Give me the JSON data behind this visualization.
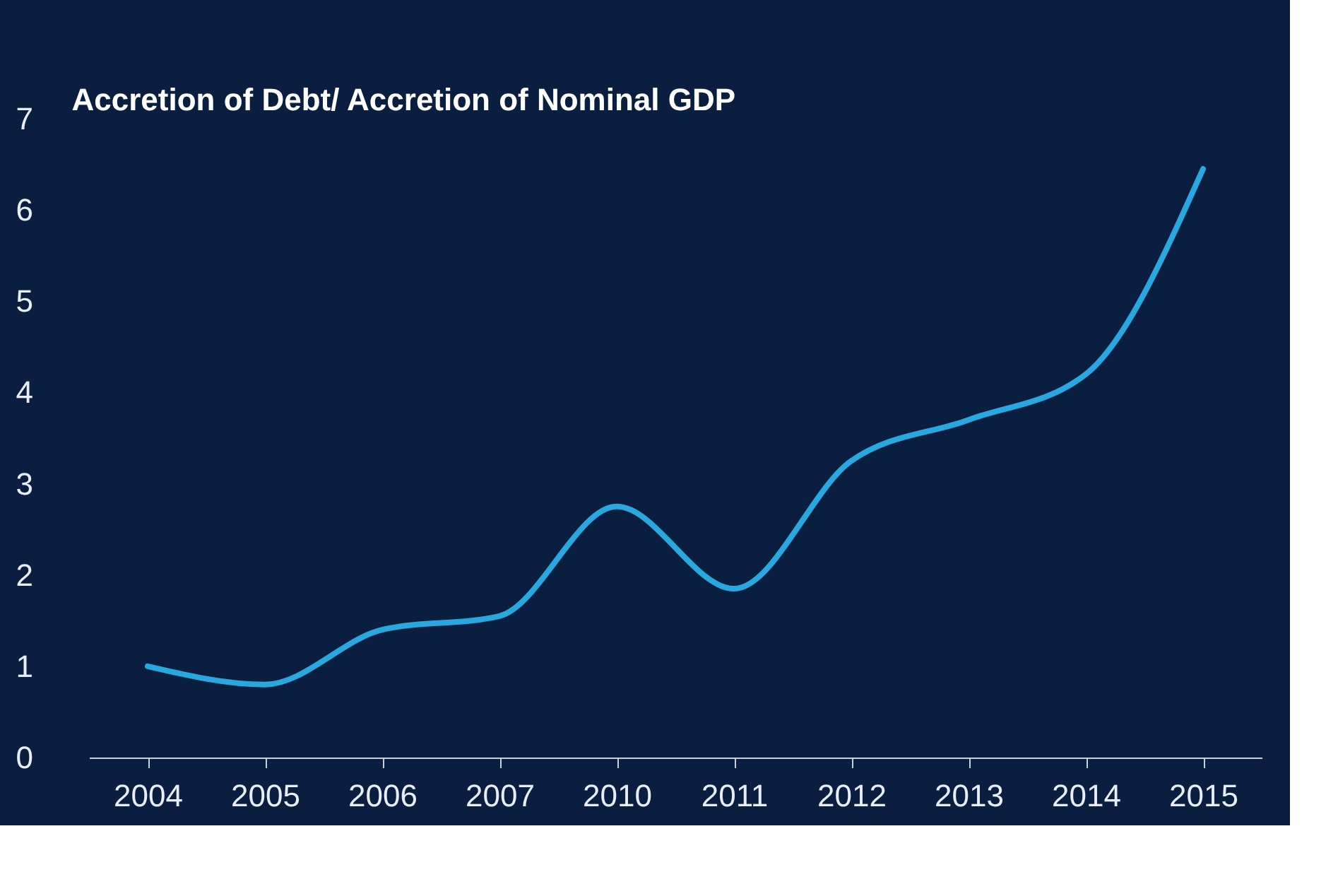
{
  "chart_data": {
    "type": "line",
    "title": "Accretion of Debt/ Accretion of Nominal GDP",
    "categories": [
      "2004",
      "2005",
      "2006",
      "2007",
      "2010",
      "2011",
      "2012",
      "2013",
      "2014",
      "2015"
    ],
    "series": [
      {
        "color": "#29a8e0",
        "values": [
          1.0,
          0.8,
          1.4,
          1.55,
          2.75,
          1.85,
          3.25,
          3.7,
          4.2,
          6.45
        ]
      }
    ],
    "ylim": [
      0,
      7
    ],
    "yticks": [
      0,
      1,
      2,
      3,
      4,
      5,
      6,
      7
    ],
    "grid": false,
    "legend": false,
    "marker": "none",
    "line_style": "solid"
  }
}
